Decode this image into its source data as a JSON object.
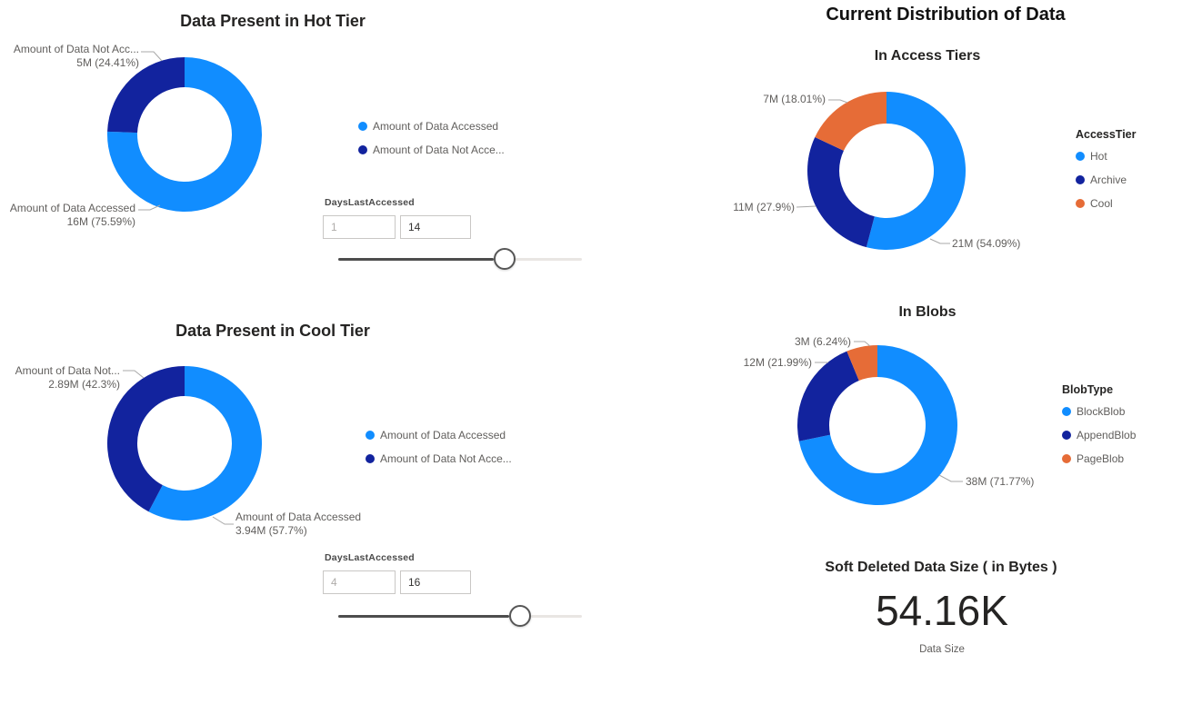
{
  "palette": {
    "light_blue": "#118DFF",
    "dark_blue": "#12239E",
    "orange": "#E66C37",
    "label_gray": "#605E5C",
    "title_dark": "#252423",
    "leader_line": "#A8A8A8",
    "slider_filled": "#4d4d4d",
    "slider_rest": "#e9e6e3"
  },
  "section_title": "Current Distribution of Data",
  "chart_data": [
    {
      "id": "hot_tier",
      "type": "donut",
      "title": "Data Present in Hot Tier",
      "slices": [
        {
          "name": "Amount of Data Accessed",
          "value": "16M",
          "pct": 75.59,
          "color": "light_blue"
        },
        {
          "name": "Amount of Data Not Accessed",
          "value": "5M",
          "pct": 24.41,
          "color": "dark_blue"
        }
      ],
      "callouts": [
        {
          "line1": "Amount of Data Not Acc...",
          "line2": "5M (24.41%)"
        },
        {
          "line1": "Amount of Data Accessed",
          "line2": "16M (75.59%)"
        }
      ],
      "legend": {
        "position": "right",
        "items": [
          {
            "label": "Amount of Data Accessed",
            "color": "light_blue"
          },
          {
            "label": "Amount of Data Not Acce...",
            "color": "dark_blue"
          }
        ]
      },
      "slicer": {
        "title": "DaysLastAccessed",
        "start": "1",
        "end": "14"
      }
    },
    {
      "id": "cool_tier",
      "type": "donut",
      "title": "Data Present in Cool Tier",
      "slices": [
        {
          "name": "Amount of Data Accessed",
          "value": "3.94M",
          "pct": 57.7,
          "color": "light_blue"
        },
        {
          "name": "Amount of Data Not Accessed",
          "value": "2.89M",
          "pct": 42.3,
          "color": "dark_blue"
        }
      ],
      "callouts": [
        {
          "line1": "Amount of Data Not...",
          "line2": "2.89M (42.3%)"
        },
        {
          "line1": "Amount of Data Accessed",
          "line2": "3.94M (57.7%)"
        }
      ],
      "legend": {
        "position": "right",
        "items": [
          {
            "label": "Amount of Data Accessed",
            "color": "light_blue"
          },
          {
            "label": "Amount of Data Not Acce...",
            "color": "dark_blue"
          }
        ]
      },
      "slicer": {
        "title": "DaysLastAccessed",
        "start": "4",
        "end": "16"
      }
    },
    {
      "id": "access_tiers",
      "type": "donut",
      "title": "In Access Tiers",
      "slices": [
        {
          "name": "Hot",
          "value": "21M",
          "pct": 54.09,
          "color": "light_blue"
        },
        {
          "name": "Archive",
          "value": "11M",
          "pct": 27.9,
          "color": "dark_blue"
        },
        {
          "name": "Cool",
          "value": "7M",
          "pct": 18.01,
          "color": "orange"
        }
      ],
      "callouts": [
        {
          "line1": "7M (18.01%)"
        },
        {
          "line1": "11M (27.9%)"
        },
        {
          "line1": "21M (54.09%)"
        }
      ],
      "legend": {
        "position": "right",
        "title": "AccessTier",
        "items": [
          {
            "label": "Hot",
            "color": "light_blue"
          },
          {
            "label": "Archive",
            "color": "dark_blue"
          },
          {
            "label": "Cool",
            "color": "orange"
          }
        ]
      }
    },
    {
      "id": "blobs",
      "type": "donut",
      "title": "In Blobs",
      "slices": [
        {
          "name": "BlockBlob",
          "value": "38M",
          "pct": 71.77,
          "color": "light_blue"
        },
        {
          "name": "AppendBlob",
          "value": "12M",
          "pct": 21.99,
          "color": "dark_blue"
        },
        {
          "name": "PageBlob",
          "value": "3M",
          "pct": 6.24,
          "color": "orange"
        }
      ],
      "callouts": [
        {
          "line1": "3M (6.24%)"
        },
        {
          "line1": "12M (21.99%)"
        },
        {
          "line1": "38M (71.77%)"
        }
      ],
      "legend": {
        "position": "right",
        "title": "BlobType",
        "items": [
          {
            "label": "BlockBlob",
            "color": "light_blue"
          },
          {
            "label": "AppendBlob",
            "color": "dark_blue"
          },
          {
            "label": "PageBlob",
            "color": "orange"
          }
        ]
      }
    },
    {
      "id": "soft_deleted_card",
      "type": "card",
      "title": "Soft Deleted Data Size ( in Bytes )",
      "value": "54.16K",
      "label": "Data Size"
    }
  ]
}
